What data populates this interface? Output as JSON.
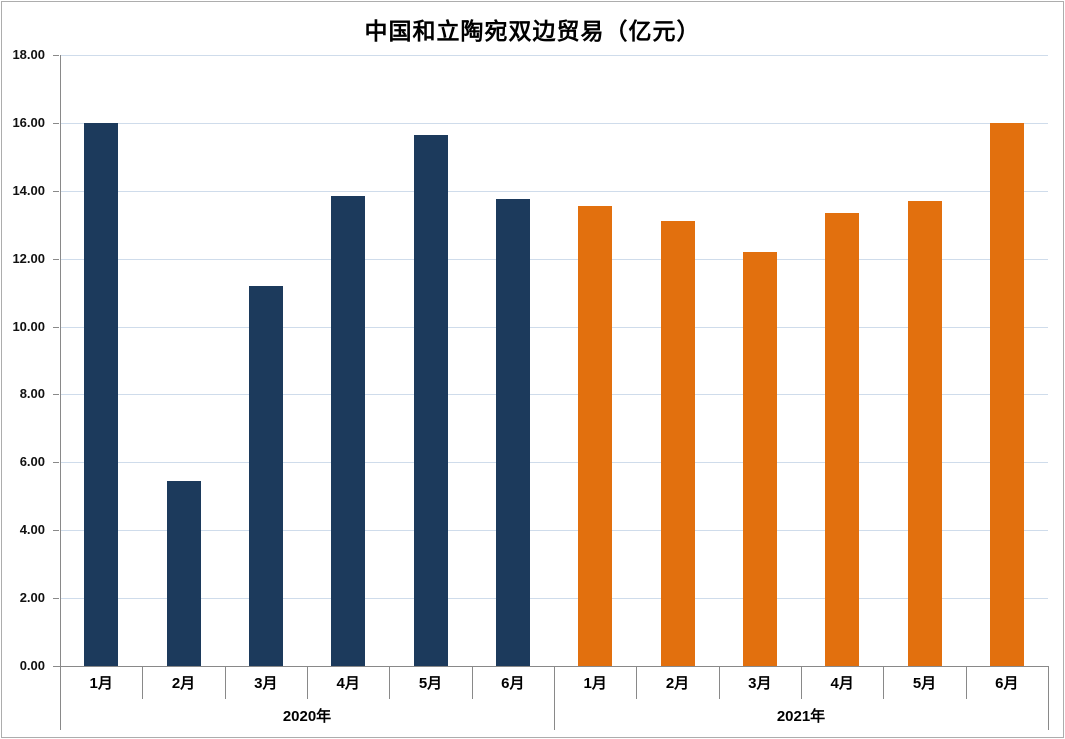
{
  "title": "中国和立陶宛双边贸易（亿元）",
  "colors": {
    "bar_2020": "#1c3a5c",
    "bar_2021": "#e2700e",
    "gridline": "#cfdceb",
    "axis": "#898989",
    "text": "#000000"
  },
  "chart_data": {
    "type": "bar",
    "title": "中国和立陶宛双边贸易（亿元）",
    "unit": "亿元",
    "categories": [
      "1月",
      "2月",
      "3月",
      "4月",
      "5月",
      "6月"
    ],
    "series": [
      {
        "name": "2020年",
        "color": "#1c3a5c",
        "values": [
          16.0,
          5.45,
          11.2,
          13.85,
          15.65,
          13.75
        ]
      },
      {
        "name": "2021年",
        "color": "#e2700e",
        "values": [
          13.55,
          13.1,
          12.2,
          13.35,
          13.7,
          16.0
        ]
      }
    ],
    "y_axis": {
      "min": 0,
      "max": 18,
      "step": 2,
      "tick_labels": [
        "0.00",
        "2.00",
        "4.00",
        "6.00",
        "8.00",
        "10.00",
        "12.00",
        "14.00",
        "16.00",
        "18.00"
      ]
    },
    "x_axis": {
      "group_labels": [
        "2020年",
        "2021年"
      ]
    },
    "grid": true,
    "legend_position": "none"
  }
}
